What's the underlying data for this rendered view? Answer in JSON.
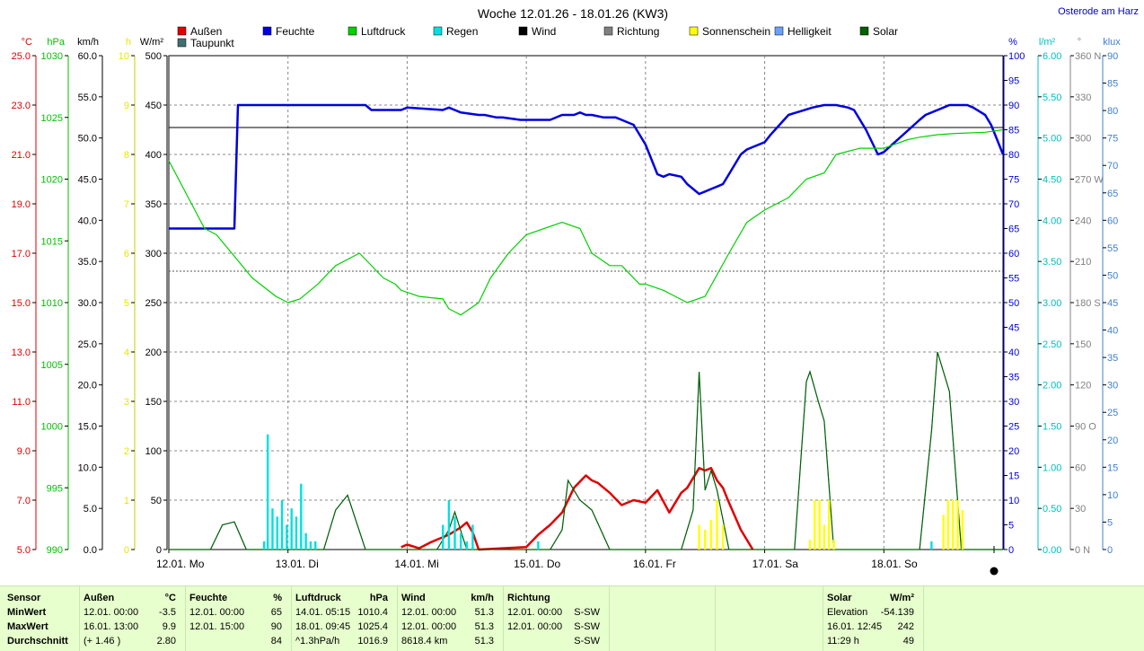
{
  "location": "Osterode am Harz",
  "chart_data": {
    "type": "line",
    "title": "Woche 12.01.26 - 18.01.26 (KW3)",
    "legend": [
      {
        "name": "Außen",
        "color": "#e00000"
      },
      {
        "name": "Feuchte",
        "color": "#0000e0"
      },
      {
        "name": "Luftdruck",
        "color": "#00d000"
      },
      {
        "name": "Regen",
        "color": "#00e0e0"
      },
      {
        "name": "Wind",
        "color": "#000000"
      },
      {
        "name": "Richtung",
        "color": "#808080"
      },
      {
        "name": "Sonnenschein",
        "color": "#ffff00"
      },
      {
        "name": "Helligkeit",
        "color": "#6aa0ff"
      },
      {
        "name": "Solar",
        "color": "#006000"
      },
      {
        "name": "Taupunkt",
        "color": "#407070"
      }
    ],
    "x_labels": [
      "12.01. Mo",
      "13.01. Di",
      "14.01. Mi",
      "15.01. Do",
      "16.01. Fr",
      "17.01. Sa",
      "18.01. So"
    ],
    "left_axes": [
      {
        "unit": "°C",
        "color": "#e00000",
        "ticks": [
          "25.0",
          "23.0",
          "21.0",
          "19.0",
          "17.0",
          "15.0",
          "13.0",
          "11.0",
          "9.0",
          "7.0",
          "5.0"
        ]
      },
      {
        "unit": "hPa",
        "color": "#00c000",
        "ticks": [
          "1030",
          "1025",
          "1020",
          "1015",
          "1010",
          "1005",
          "1000",
          "995",
          "990"
        ]
      },
      {
        "unit": "km/h",
        "color": "#000000",
        "ticks": [
          "60.0",
          "55.0",
          "50.0",
          "45.0",
          "40.0",
          "35.0",
          "30.0",
          "25.0",
          "20.0",
          "15.0",
          "10.0",
          "5.0",
          "0.0"
        ]
      },
      {
        "unit": "h",
        "color": "#e6e600",
        "ticks": [
          "10",
          "9",
          "8",
          "7",
          "6",
          "5",
          "4",
          "3",
          "2",
          "1",
          "0"
        ]
      },
      {
        "unit": "W/m²",
        "color": "#000000",
        "ticks": [
          "500",
          "450",
          "400",
          "350",
          "300",
          "250",
          "200",
          "150",
          "100",
          "50",
          "0"
        ]
      }
    ],
    "right_axes": [
      {
        "unit": "%",
        "color": "#0000e0",
        "ticks": [
          "100",
          "95",
          "90",
          "85",
          "80",
          "75",
          "70",
          "65",
          "60",
          "55",
          "50",
          "45",
          "40",
          "35",
          "30",
          "25",
          "20",
          "15",
          "10",
          "5",
          "0"
        ]
      },
      {
        "unit": "l/m²",
        "color": "#00c0c0",
        "ticks": [
          "6.00",
          "5.50",
          "5.00",
          "4.50",
          "4.00",
          "3.50",
          "3.00",
          "2.50",
          "2.00",
          "1.50",
          "1.00",
          "0.50",
          "0.00"
        ]
      },
      {
        "unit": "°",
        "color": "#808080",
        "ticks": [
          "360 N",
          "330",
          "300",
          "270 W",
          "240",
          "210",
          "180 S",
          "150",
          "120",
          "90 O",
          "60",
          "30",
          "0 N"
        ]
      },
      {
        "unit": "klux",
        "color": "#4080d0",
        "ticks": [
          "90",
          "85",
          "80",
          "75",
          "70",
          "65",
          "60",
          "55",
          "50",
          "45",
          "40",
          "35",
          "30",
          "25",
          "20",
          "15",
          "10",
          "5",
          "0"
        ]
      }
    ],
    "series": [
      {
        "name": "Feuchte",
        "unit": "%",
        "x_day": [
          0,
          0.55,
          0.58,
          1.65,
          1.7,
          1.95,
          2.0,
          2.3,
          2.35,
          2.45,
          2.6,
          2.65,
          2.75,
          2.8,
          2.95,
          3.15,
          3.2,
          3.3,
          3.4,
          3.45,
          3.5,
          3.55,
          3.65,
          3.75,
          3.8,
          3.9,
          4.0,
          4.1,
          4.15,
          4.2,
          4.3,
          4.35,
          4.45,
          4.5,
          4.55,
          4.6,
          4.65,
          4.7,
          4.8,
          4.85,
          5.0,
          5.05,
          5.2,
          5.4,
          5.5,
          5.6,
          5.7,
          5.75,
          5.85,
          5.95,
          6.0,
          6.3,
          6.35,
          6.5,
          6.55,
          6.6,
          6.7,
          6.75,
          6.85,
          6.9,
          6.95,
          7.0
        ],
        "y": [
          65,
          65,
          90,
          90,
          89,
          89,
          89.5,
          89,
          89.5,
          88.5,
          88,
          88,
          87.5,
          87.5,
          87,
          87,
          87,
          88,
          88,
          88.5,
          88,
          88,
          87.5,
          87.5,
          87,
          86,
          82,
          76,
          75.5,
          76,
          75.5,
          74,
          72,
          72.5,
          73,
          73.5,
          74,
          76,
          80,
          81,
          82.5,
          84,
          88,
          89.5,
          90,
          90,
          89.5,
          89,
          85,
          80,
          80.5,
          87,
          88,
          89.5,
          90,
          90,
          90,
          89.5,
          88,
          86,
          83,
          80
        ]
      },
      {
        "name": "Luftdruck",
        "unit": "hPa",
        "x_day": [
          0,
          0.3,
          0.4,
          0.7,
          0.9,
          1.0,
          1.1,
          1.25,
          1.35,
          1.4,
          1.6,
          1.8,
          1.9,
          1.95,
          2.1,
          2.3,
          2.35,
          2.45,
          2.6,
          2.7,
          2.85,
          2.95,
          3.0,
          3.15,
          3.3,
          3.45,
          3.55,
          3.7,
          3.8,
          3.95,
          4.0,
          4.15,
          4.25,
          4.35,
          4.5,
          4.7,
          4.85,
          5.0,
          5.2,
          5.35,
          5.5,
          5.6,
          5.8,
          6.0,
          6.2,
          6.3,
          6.45,
          6.6,
          6.85,
          7.0
        ],
        "y": [
          1021.5,
          1016,
          1015.5,
          1012,
          1010.5,
          1010,
          1010.3,
          1011.5,
          1012.5,
          1013,
          1014,
          1012,
          1011.5,
          1011,
          1010.5,
          1010.3,
          1009.5,
          1009,
          1010,
          1012,
          1014,
          1015,
          1015.5,
          1016,
          1016.5,
          1016,
          1014,
          1013,
          1013,
          1011.5,
          1011.5,
          1011,
          1010.5,
          1010,
          1010.5,
          1014,
          1016.5,
          1017.5,
          1018.5,
          1020,
          1020.5,
          1022,
          1022.5,
          1022.5,
          1023.2,
          1023.4,
          1023.6,
          1023.7,
          1023.8,
          1024
        ]
      },
      {
        "name": "Außen",
        "unit": "°C",
        "x_day": [
          1.95,
          2.0,
          2.1,
          2.2,
          2.25,
          2.35,
          2.45,
          2.5,
          2.55,
          2.6,
          3.0,
          3.1,
          3.2,
          3.3,
          3.4,
          3.5,
          3.55,
          3.6,
          3.7,
          3.8,
          3.9,
          4.0,
          4.1,
          4.2,
          4.3,
          4.35,
          4.45,
          4.5,
          4.55,
          4.6,
          4.65,
          4.7,
          4.8,
          4.9
        ],
        "y": [
          5.1,
          5.2,
          5.05,
          5.3,
          5.4,
          5.6,
          5.9,
          6.1,
          5.7,
          5.0,
          5.1,
          5.6,
          6.0,
          6.5,
          7.5,
          8.0,
          7.8,
          7.7,
          7.3,
          6.8,
          7.0,
          6.9,
          7.4,
          6.5,
          7.3,
          7.5,
          8.3,
          8.2,
          8.3,
          7.8,
          7.5,
          6.9,
          5.8,
          5.0
        ]
      },
      {
        "name": "Solar",
        "unit": "W/m²",
        "x_day": [
          0.0,
          0.35,
          0.45,
          0.55,
          0.65,
          1.0,
          1.3,
          1.4,
          1.5,
          1.65,
          2.0,
          2.25,
          2.35,
          2.4,
          2.5,
          3.0,
          3.2,
          3.3,
          3.35,
          3.45,
          3.55,
          3.7,
          4.0,
          4.3,
          4.4,
          4.45,
          4.5,
          4.55,
          4.6,
          4.7,
          5.0,
          5.25,
          5.35,
          5.38,
          5.45,
          5.5,
          5.58,
          6.0,
          6.3,
          6.4,
          6.45,
          6.55,
          6.65,
          7.0
        ],
        "y": [
          0,
          0,
          25,
          28,
          0,
          0,
          0,
          40,
          55,
          0,
          0,
          0,
          20,
          38,
          0,
          0,
          0,
          20,
          70,
          50,
          40,
          0,
          0,
          0,
          40,
          180,
          60,
          80,
          60,
          0,
          0,
          0,
          170,
          180,
          150,
          130,
          0,
          0,
          0,
          120,
          200,
          160,
          0,
          0
        ]
      },
      {
        "name": "Sonnenschein",
        "unit": "h",
        "x_day": [
          4.45,
          4.5,
          4.55,
          4.6,
          4.65,
          5.38,
          5.42,
          5.46,
          5.5,
          5.54,
          5.58,
          6.5,
          6.54,
          6.58,
          6.62,
          6.66
        ],
        "y": [
          0.5,
          0.4,
          0.6,
          1.0,
          0.5,
          0.2,
          1.0,
          1.0,
          0.5,
          1.0,
          0.2,
          0.7,
          1.0,
          1.0,
          1.0,
          0.8
        ]
      },
      {
        "name": "Regen",
        "unit": "l/m²",
        "x_day": [
          0.8,
          0.83,
          0.87,
          0.91,
          0.95,
          0.99,
          1.03,
          1.07,
          1.11,
          1.15,
          1.19,
          1.23,
          2.3,
          2.35,
          2.4,
          2.45,
          2.5,
          2.55,
          3.1,
          6.4
        ],
        "y": [
          0.1,
          1.4,
          0.5,
          0.4,
          0.6,
          0.3,
          0.5,
          0.4,
          0.8,
          0.2,
          0.1,
          0.1,
          0.3,
          0.6,
          0.4,
          0.2,
          0.1,
          0.3,
          0.1,
          0.1
        ]
      }
    ]
  },
  "footer": {
    "sensor": {
      "header": "Sensor",
      "rows": [
        "MinWert",
        "MaxWert",
        "Durchschnitt"
      ]
    },
    "aussen": {
      "header": "Außen",
      "unit": "°C",
      "rows": [
        [
          "12.01.  00:00",
          "-3.5"
        ],
        [
          "16.01.  13:00",
          "9.9"
        ],
        [
          "(+ 1.46 )",
          "2.80"
        ]
      ]
    },
    "feuchte": {
      "header": "Feuchte",
      "unit": "%",
      "rows": [
        [
          "12.01.  00:00",
          "65"
        ],
        [
          "12.01.  15:00",
          "90"
        ],
        [
          "",
          "84"
        ]
      ]
    },
    "luftdruck": {
      "header": "Luftdruck",
      "unit": "hPa",
      "rows": [
        [
          "14.01.  05:15",
          "1010.4"
        ],
        [
          "18.01.  09:45",
          "1025.4"
        ],
        [
          "^1.3hPa/h",
          "1016.9"
        ]
      ]
    },
    "wind": {
      "header": "Wind",
      "unit": "km/h",
      "rows": [
        [
          "12.01.  00:00",
          "51.3"
        ],
        [
          "12.01.  00:00",
          "51.3"
        ],
        [
          "8618.4 km",
          "51.3"
        ]
      ]
    },
    "richtung": {
      "header": "Richtung",
      "rows": [
        [
          "12.01.  00:00",
          "S-SW"
        ],
        [
          "12.01.  00:00",
          "S-SW"
        ],
        [
          "",
          "S-SW"
        ]
      ]
    },
    "solar": {
      "header": "Solar",
      "unit": "W/m²",
      "rows": [
        [
          "Elevation",
          "-54.139"
        ],
        [
          "16.01.  12:45",
          "242"
        ],
        [
          "11:29 h",
          "49"
        ]
      ]
    }
  }
}
